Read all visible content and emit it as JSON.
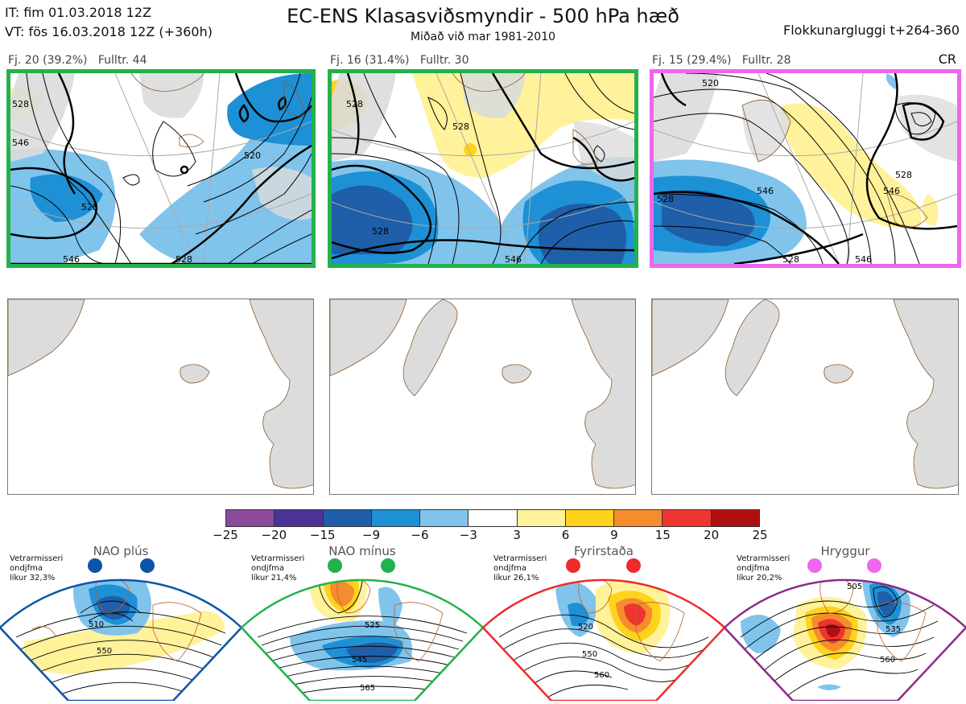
{
  "header": {
    "it": "IT: fim 01.03.2018 12Z",
    "vt": "VT: fös 16.03.2018 12Z  (+360h)",
    "title": "EC-ENS Klasasviðsmyndir - 500 hPa hæð",
    "subtitle": "Miðað við mar 1981-2010",
    "window": "Flokkunargluggi t+264-360",
    "cr": "CR"
  },
  "clusters": [
    {
      "label": "Fj. 20 (39.2%)",
      "rep": "Fulltr. 44",
      "border_color": "#22b14c",
      "contours": [
        "528",
        "546",
        "528",
        "520",
        "528",
        "546"
      ]
    },
    {
      "label": "Fj. 16 (31.4%)",
      "rep": "Fulltr. 30",
      "border_color": "#22b14c",
      "contours": [
        "528",
        "528",
        "528",
        "546"
      ]
    },
    {
      "label": "Fj. 15 (29.4%)",
      "rep": "Fulltr. 28",
      "border_color": "#ee66ee",
      "contours": [
        "520",
        "528",
        "546",
        "546",
        "528",
        "528",
        "546"
      ]
    }
  ],
  "colorbar": {
    "colors": [
      "#8b4a9b",
      "#4b3296",
      "#1f5ea8",
      "#1e90d6",
      "#80c4ec",
      "#ffffff",
      "#fff29a",
      "#ffd21e",
      "#f58c2e",
      "#ee3530",
      "#b00f12"
    ],
    "ticks": [
      "−25",
      "−20",
      "−15",
      "−9",
      "−6",
      "−3",
      "3",
      "6",
      "9",
      "15",
      "20",
      "25"
    ]
  },
  "regimes": [
    {
      "name": "NAO plús",
      "season": "Vetrarmisseri",
      "desc": "ondjfma",
      "prob": "líkur 32,3%",
      "color": "#0a55a8",
      "labels": [
        "510",
        "550"
      ]
    },
    {
      "name": "NAO mínus",
      "season": "Vetrarmisseri",
      "desc": "ondjfma",
      "prob": "líkur 21,4%",
      "color": "#22b14c",
      "labels": [
        "525",
        "545",
        "565"
      ]
    },
    {
      "name": "Fyrirstaða",
      "season": "Vetrarmisseri",
      "desc": "ondjfma",
      "prob": "líkur 26,1%",
      "color": "#ee2a2a",
      "labels": [
        "520",
        "550",
        "560"
      ]
    },
    {
      "name": "Hryggur",
      "season": "Vetrarmisseri",
      "desc": "ondjfma",
      "prob": "líkur 20,2%",
      "color": "#ee66ee",
      "labels": [
        "505",
        "535",
        "560"
      ]
    }
  ]
}
